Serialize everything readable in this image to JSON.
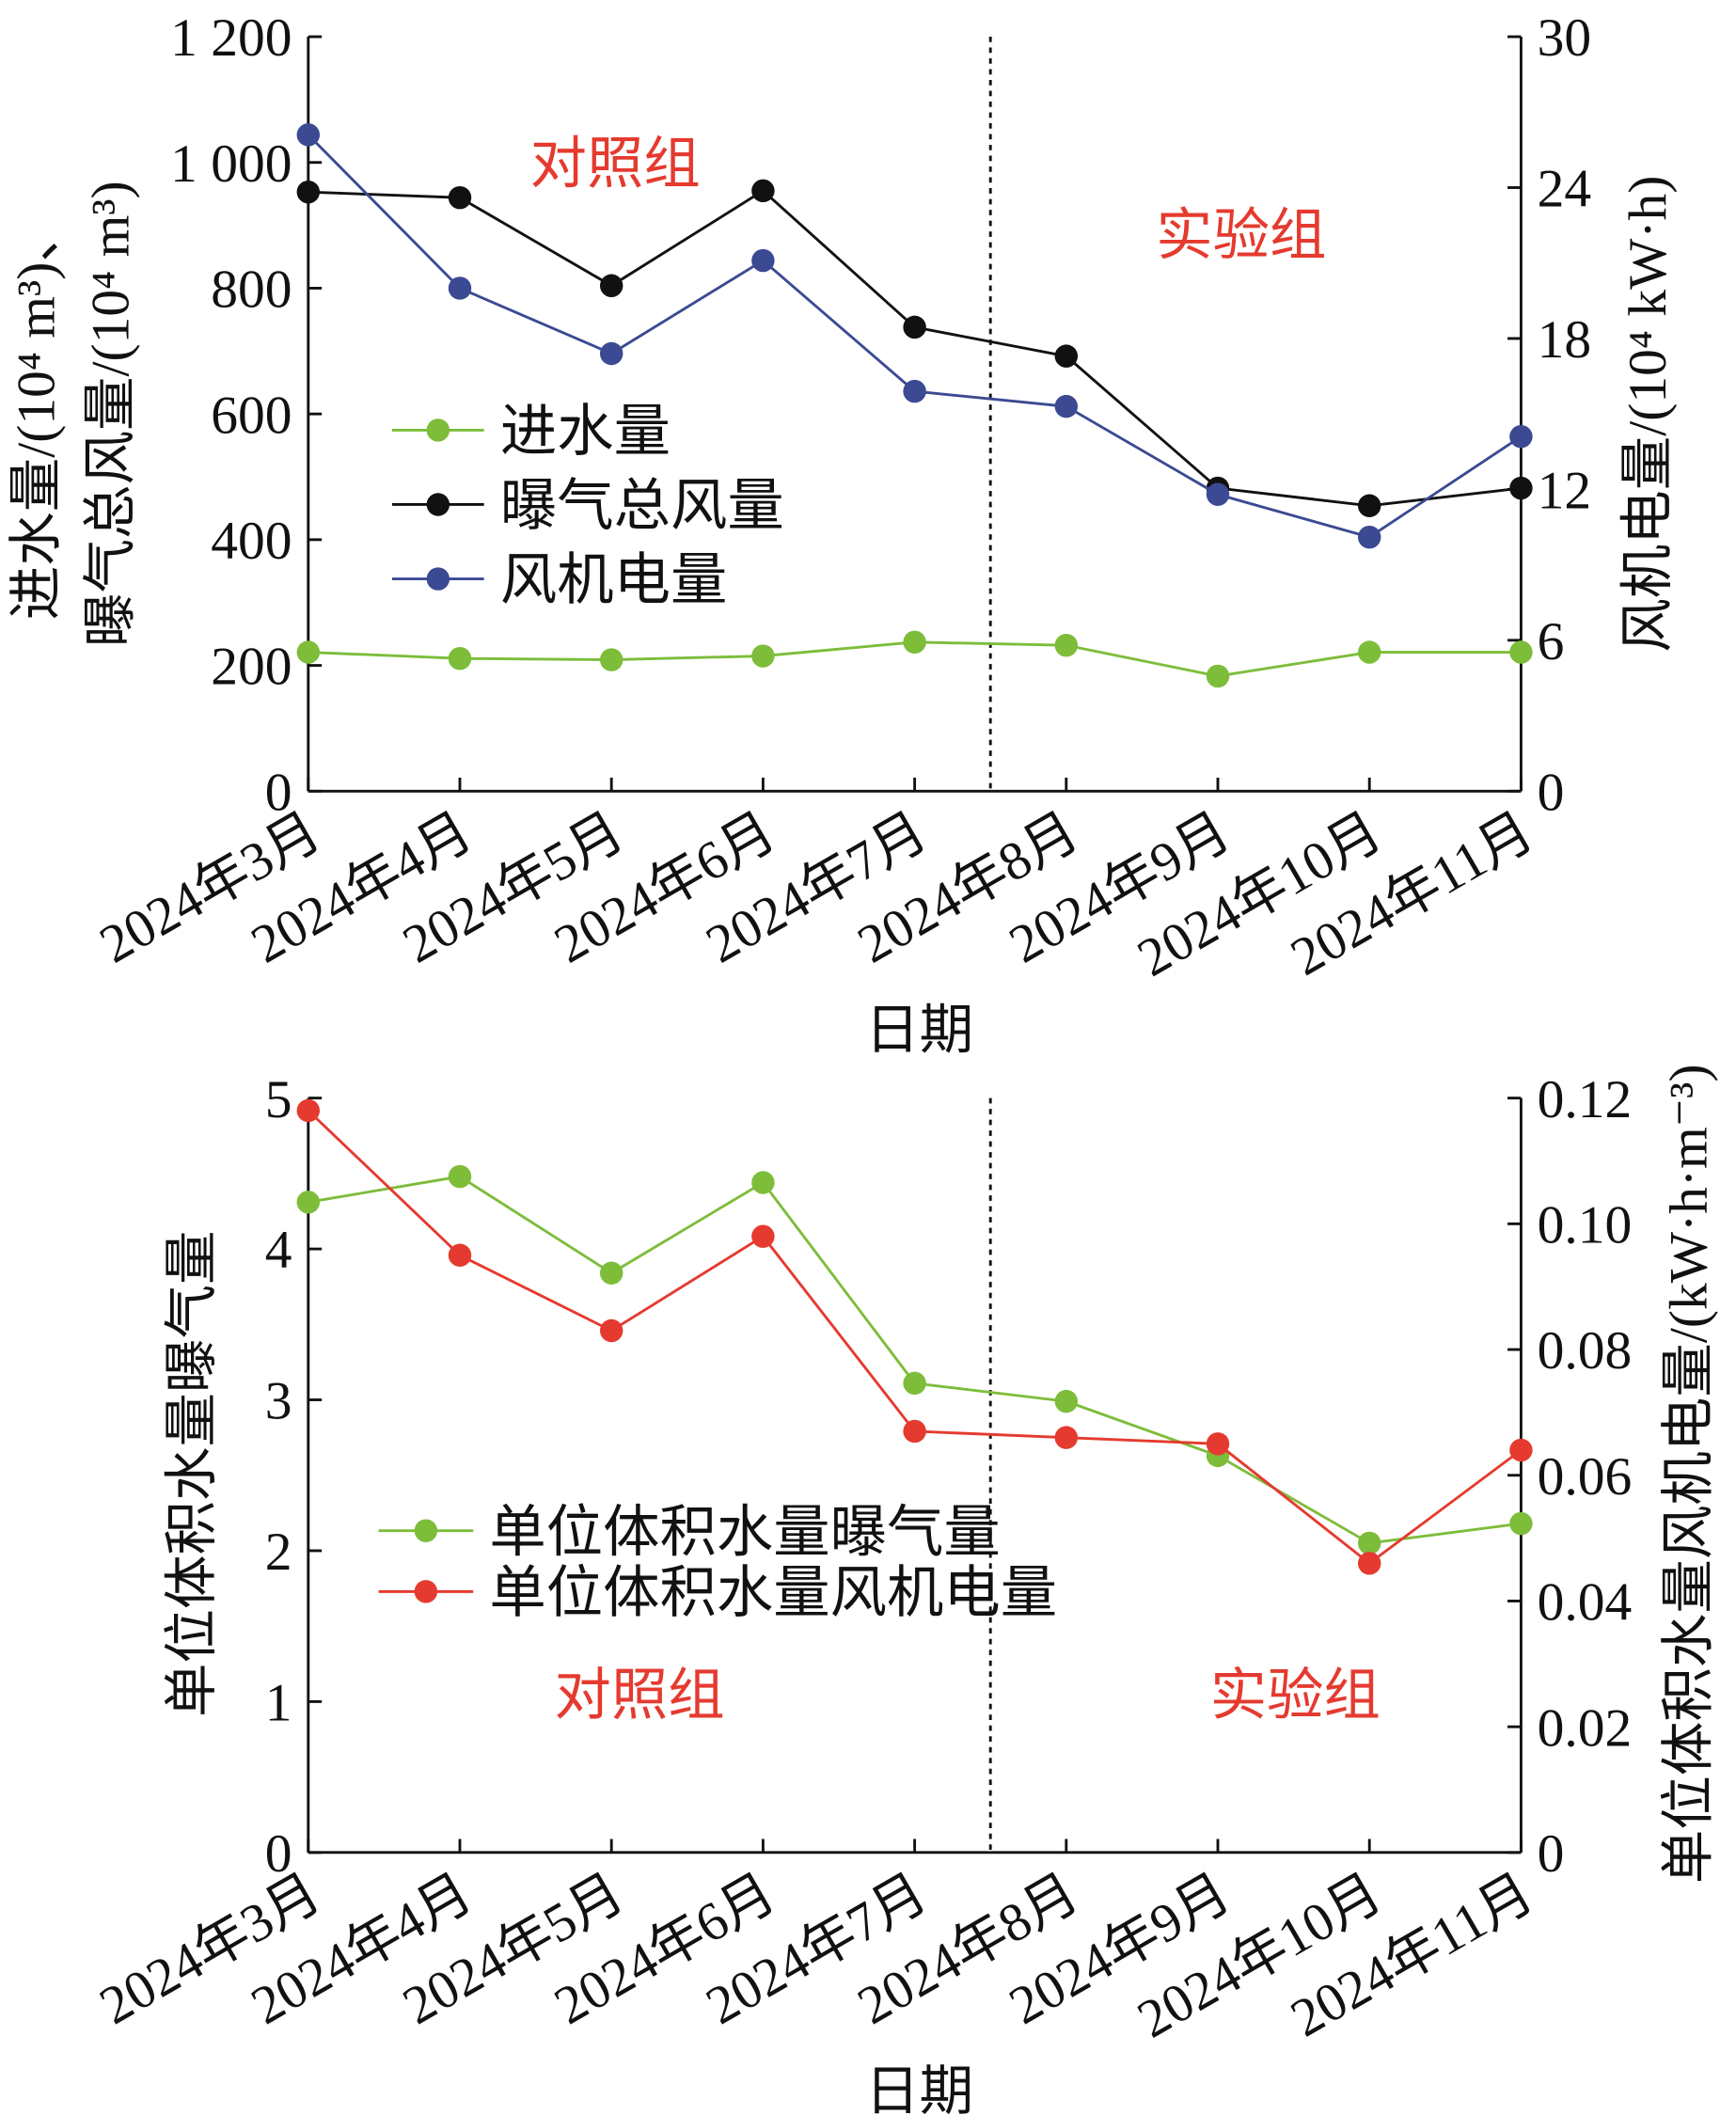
{
  "chart_data": [
    {
      "type": "line",
      "categories": [
        "2024年3月",
        "2024年4月",
        "2024年5月",
        "2024年6月",
        "2024年7月",
        "2024年8月",
        "2024年9月",
        "2024年10月",
        "2024年11月"
      ],
      "xlabel": "日期",
      "ylabel_lines": [
        "进水量/(10⁴ m³)、",
        "曝气总风量/(10⁴ m³)"
      ],
      "ylabel_right": "风机电量/(10⁴ kW·h)",
      "ylim": [
        0,
        1200
      ],
      "yticks": [
        0,
        200,
        400,
        600,
        800,
        1000,
        1200
      ],
      "ytick_labels": [
        "0",
        "200",
        "400",
        "600",
        "800",
        "1 000",
        "1 200"
      ],
      "ylim_right": [
        0,
        30
      ],
      "yticks_right": [
        "0",
        "6",
        "12",
        "18",
        "24",
        "30"
      ],
      "divider_between": [
        "2024年7月",
        "2024年8月"
      ],
      "annotations": [
        "对照组",
        "实验组"
      ],
      "legend_position": "center-left",
      "series": [
        {
          "name": "进水量",
          "axis": "left",
          "color": "#7dbd3a",
          "values": [
            221,
            211,
            209,
            215,
            237,
            232,
            183,
            221,
            221
          ]
        },
        {
          "name": "曝气总风量",
          "axis": "left",
          "color": "#111111",
          "values": [
            953,
            944,
            804,
            955,
            738,
            692,
            482,
            454,
            482
          ]
        },
        {
          "name": "风机电量",
          "axis": "right",
          "color": "#3b4a92",
          "values": [
            26.1,
            20.0,
            17.4,
            21.1,
            15.9,
            15.3,
            11.8,
            10.1,
            14.1
          ]
        }
      ]
    },
    {
      "type": "line",
      "categories": [
        "2024年3月",
        "2024年4月",
        "2024年5月",
        "2024年6月",
        "2024年7月",
        "2024年8月",
        "2024年9月",
        "2024年10月",
        "2024年11月"
      ],
      "xlabel": "日期",
      "ylabel_lines": [
        "单位体积水量曝气量"
      ],
      "ylabel_right": "单位体积水量风机电量/(kW·h·m⁻³)",
      "ylim": [
        0,
        5
      ],
      "yticks": [
        0,
        1,
        2,
        3,
        4,
        5
      ],
      "ytick_labels": [
        "0",
        "1",
        "2",
        "3",
        "4",
        "5"
      ],
      "ylim_right": [
        0,
        0.12
      ],
      "yticks_right": [
        "0",
        "0.02",
        "0.04",
        "0.06",
        "0.08",
        "0.10",
        "0.12"
      ],
      "divider_between": [
        "2024年7月",
        "2024年8月"
      ],
      "annotations": [
        "对照组",
        "实验组"
      ],
      "legend_position": "center-left",
      "series": [
        {
          "name": "单位体积水量曝气量",
          "axis": "left",
          "color": "#7dbd3a",
          "values": [
            4.31,
            4.48,
            3.84,
            4.44,
            3.11,
            2.99,
            2.63,
            2.05,
            2.18
          ]
        },
        {
          "name": "单位体积水量风机电量",
          "axis": "right",
          "color": "#e53a2f",
          "values": [
            0.118,
            0.095,
            0.083,
            0.098,
            0.067,
            0.066,
            0.065,
            0.046,
            0.064
          ]
        }
      ]
    }
  ]
}
